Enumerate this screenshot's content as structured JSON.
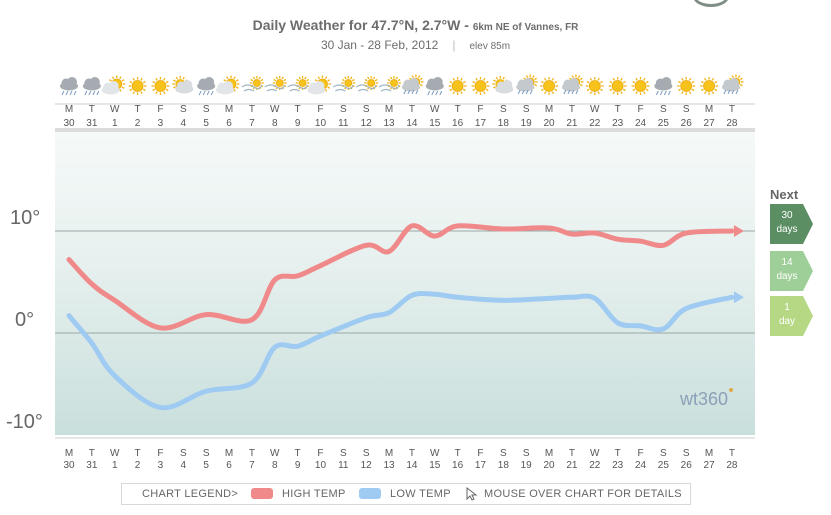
{
  "header": {
    "title": "Daily Weather for 47.7°N, 2.7°W -",
    "location": "6km NE of Vannes, FR",
    "date_range": "30 Jan - 28 Feb, 2012",
    "separator": "|",
    "elevation": "elev 85m"
  },
  "days": [
    {
      "dow": "M",
      "date": "30",
      "icon": "rain-cloud-icon"
    },
    {
      "dow": "T",
      "date": "31",
      "icon": "rain-cloud-icon"
    },
    {
      "dow": "W",
      "date": "1",
      "icon": "sun-cloud-icon"
    },
    {
      "dow": "T",
      "date": "2",
      "icon": "sun-icon"
    },
    {
      "dow": "F",
      "date": "3",
      "icon": "sun-icon"
    },
    {
      "dow": "S",
      "date": "4",
      "icon": "sun-behind-cloud-icon"
    },
    {
      "dow": "S",
      "date": "5",
      "icon": "rain-cloud-icon"
    },
    {
      "dow": "M",
      "date": "6",
      "icon": "sun-cloud-icon"
    },
    {
      "dow": "T",
      "date": "7",
      "icon": "wind-sun-icon"
    },
    {
      "dow": "W",
      "date": "8",
      "icon": "wind-sun-icon"
    },
    {
      "dow": "T",
      "date": "9",
      "icon": "wind-sun-icon"
    },
    {
      "dow": "F",
      "date": "10",
      "icon": "sun-cloud-icon"
    },
    {
      "dow": "S",
      "date": "11",
      "icon": "wind-sun-icon"
    },
    {
      "dow": "S",
      "date": "12",
      "icon": "wind-sun-icon"
    },
    {
      "dow": "M",
      "date": "13",
      "icon": "wind-sun-icon"
    },
    {
      "dow": "T",
      "date": "14",
      "icon": "sun-rain-icon"
    },
    {
      "dow": "W",
      "date": "15",
      "icon": "rain-cloud-icon"
    },
    {
      "dow": "T",
      "date": "16",
      "icon": "sun-icon"
    },
    {
      "dow": "F",
      "date": "17",
      "icon": "sun-icon"
    },
    {
      "dow": "S",
      "date": "18",
      "icon": "sun-behind-cloud-icon"
    },
    {
      "dow": "S",
      "date": "19",
      "icon": "sun-rain-icon"
    },
    {
      "dow": "M",
      "date": "20",
      "icon": "sun-icon"
    },
    {
      "dow": "T",
      "date": "21",
      "icon": "sun-rain-icon"
    },
    {
      "dow": "W",
      "date": "22",
      "icon": "sun-icon"
    },
    {
      "dow": "T",
      "date": "23",
      "icon": "sun-icon"
    },
    {
      "dow": "F",
      "date": "24",
      "icon": "sun-icon"
    },
    {
      "dow": "S",
      "date": "25",
      "icon": "rain-cloud-icon"
    },
    {
      "dow": "S",
      "date": "26",
      "icon": "sun-icon"
    },
    {
      "dow": "M",
      "date": "27",
      "icon": "sun-icon"
    },
    {
      "dow": "T",
      "date": "28",
      "icon": "sun-rain-icon"
    }
  ],
  "month_labels": [
    {
      "index": 0,
      "label": "Jan"
    },
    {
      "index": 2,
      "label": "Feb"
    }
  ],
  "chart_data": {
    "type": "line",
    "ylim": [
      -10,
      20
    ],
    "yticks": [
      {
        "value": 10,
        "label": "10°"
      },
      {
        "value": 0,
        "label": "0°"
      },
      {
        "value": -10,
        "label": "-10°"
      }
    ],
    "grid": true,
    "series": [
      {
        "name": "HIGH TEMP",
        "color": "#f08a8a",
        "values": [
          7.2,
          4.8,
          3.2,
          0.5,
          1.8,
          1.3,
          5.2,
          5.6,
          6.6,
          8.6,
          8.0,
          10.5,
          9.5,
          10.5,
          10.2,
          10.3,
          9.7,
          9.8,
          9.2,
          9.0,
          8.6,
          9.8,
          10.0
        ]
      },
      {
        "name": "LOW TEMP",
        "color": "#9fcbf2",
        "values": [
          1.7,
          -1.0,
          -4.2,
          -7.3,
          -5.7,
          -4.9,
          -1.4,
          -1.3,
          -0.3,
          1.5,
          2.0,
          3.7,
          3.8,
          3.5,
          3.2,
          3.4,
          3.5,
          3.4,
          1.0,
          0.7,
          0.4,
          2.4,
          3.5
        ]
      }
    ],
    "series_x_index": [
      0,
      1,
      2,
      4,
      6,
      8,
      9,
      10,
      11,
      13,
      14,
      15,
      16,
      17,
      19,
      21,
      22,
      23,
      24,
      25,
      26,
      27,
      29
    ]
  },
  "legend": {
    "title": "CHART LEGEND>",
    "high_label": "HIGH TEMP",
    "low_label": "LOW TEMP",
    "mouse_hint": "MOUSE OVER CHART FOR DETAILS",
    "high_color": "#f08a8a",
    "low_color": "#9fcbf2"
  },
  "range_selector": {
    "title": "Next",
    "options": [
      {
        "number": "30",
        "unit": "days",
        "color": "#5b8f63",
        "active": true
      },
      {
        "number": "14",
        "unit": "days",
        "color": "#9fcf98",
        "active": false
      },
      {
        "number": "1",
        "unit": "day",
        "color": "#b6d884",
        "active": false
      }
    ]
  },
  "watermark": "wt360"
}
